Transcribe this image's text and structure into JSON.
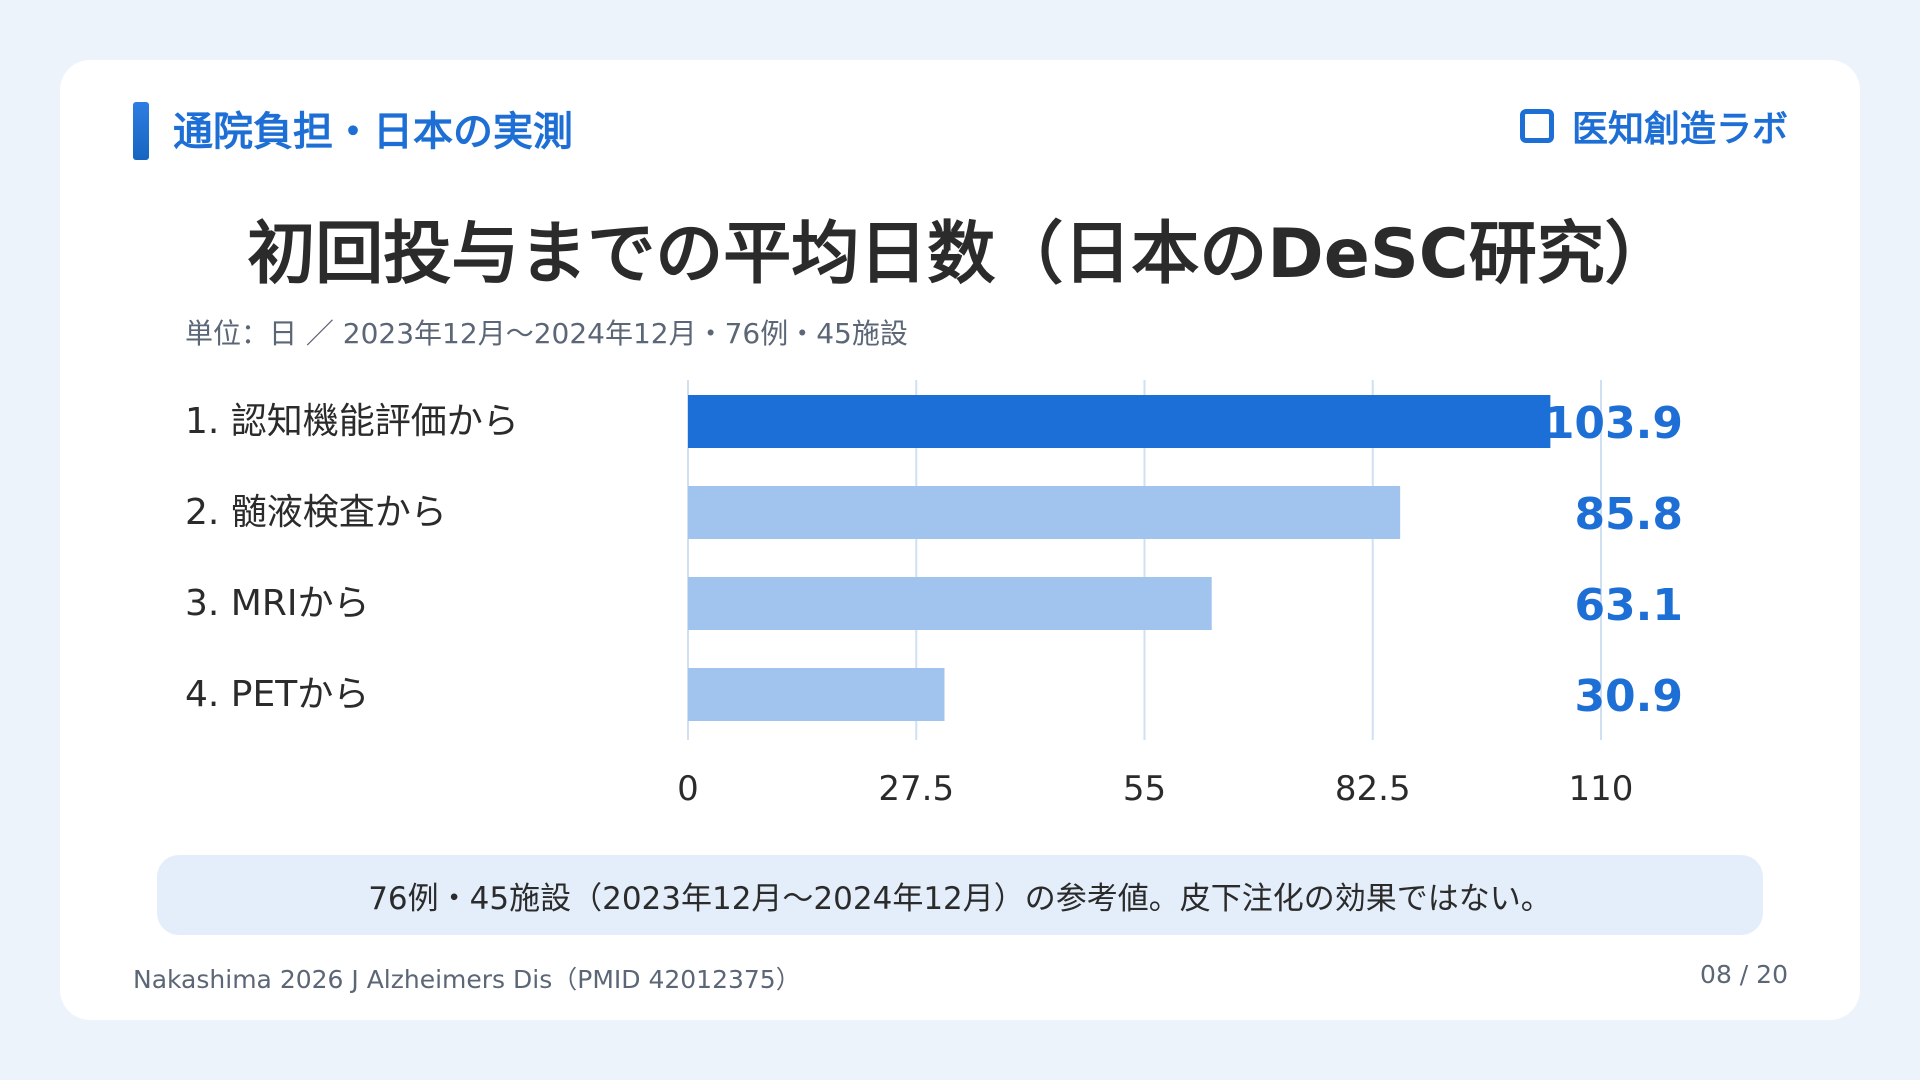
{
  "header": {
    "section_label": "通院負担・日本の実測",
    "brand": "医知創造ラボ",
    "brand_icon": "square-outline-icon"
  },
  "title": "初回投与までの平均日数（日本のDeSC研究）",
  "subtitle": "単位：日 ／ 2023年12月〜2024年12月・76例・45施設",
  "chart_data": {
    "type": "bar",
    "orientation": "horizontal",
    "categories": [
      "1. 認知機能評価から",
      "2. 髄液検査から",
      "3. MRIから",
      "4. PETから"
    ],
    "values": [
      103.9,
      85.8,
      63.1,
      30.9
    ],
    "value_labels": [
      "103.9",
      "85.8",
      "63.1",
      "30.9"
    ],
    "xlim": [
      0,
      110
    ],
    "xticks": [
      0,
      27.5,
      55,
      82.5,
      110
    ],
    "xtick_labels": [
      "0",
      "27.5",
      "55",
      "82.5",
      "110"
    ],
    "grid": true,
    "colors": {
      "highlight": "#1b6fd6",
      "bar": "#a0c4ee",
      "grid": "#cfe0f3",
      "value_text": "#1d6fd6"
    }
  },
  "note": "76例・45施設（2023年12月〜2024年12月）の参考値。皮下注化の効果ではない。",
  "footer": {
    "source": "Nakashima 2026 J Alzheimers Dis（PMID 42012375）",
    "page": "08 / 20"
  }
}
